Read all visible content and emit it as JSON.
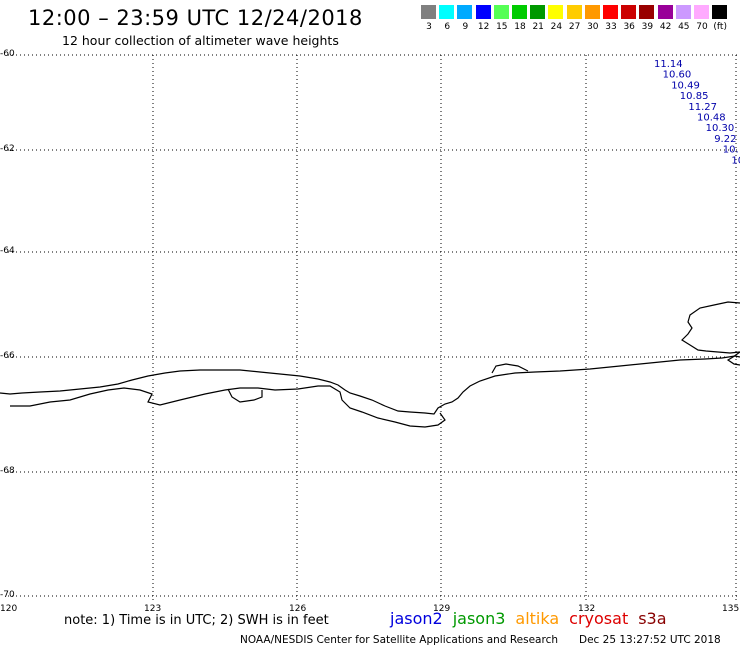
{
  "title": "12:00 – 23:59 UTC 12/24/2018",
  "subtitle": "12 hour collection of altimeter wave heights",
  "color_scale": {
    "colors": [
      "#808080",
      "#00ffff",
      "#00aaff",
      "#0000ff",
      "#55ff55",
      "#00cc00",
      "#009900",
      "#ffff00",
      "#ffcc00",
      "#ff9900",
      "#ff0000",
      "#cc0000",
      "#990000",
      "#990099",
      "#cc99ff",
      "#ffaaff",
      "#000000"
    ],
    "labels": [
      "3",
      "6",
      "9",
      "12",
      "15",
      "18",
      "21",
      "24",
      "27",
      "30",
      "33",
      "36",
      "39",
      "42",
      "45",
      "70",
      "(ft)"
    ]
  },
  "lat_labels": [
    "-60",
    "-62",
    "-64",
    "-66",
    "-68",
    "-70"
  ],
  "lon_labels": [
    "120",
    "123",
    "126",
    "129",
    "132",
    "135"
  ],
  "wave_readings": {
    "color": "#0000aa",
    "values": [
      "11.14",
      "10.60",
      "10.49",
      "10.85",
      "11.27",
      "10.48",
      "10.30",
      "9.22",
      "10.",
      "10"
    ]
  },
  "note": "note: 1) Time is in UTC; 2) SWH is in feet",
  "satellites": [
    {
      "name": "jason2",
      "color": "#0000dd"
    },
    {
      "name": "jason3",
      "color": "#009900"
    },
    {
      "name": "altika",
      "color": "#ff9900"
    },
    {
      "name": "cryosat",
      "color": "#dd0000"
    },
    {
      "name": "s3a",
      "color": "#880000"
    }
  ],
  "credit": "NOAA/NESDIS Center for Satellite Applications and Research",
  "timestamp": "Dec 25 13:27:52 UTC 2018"
}
